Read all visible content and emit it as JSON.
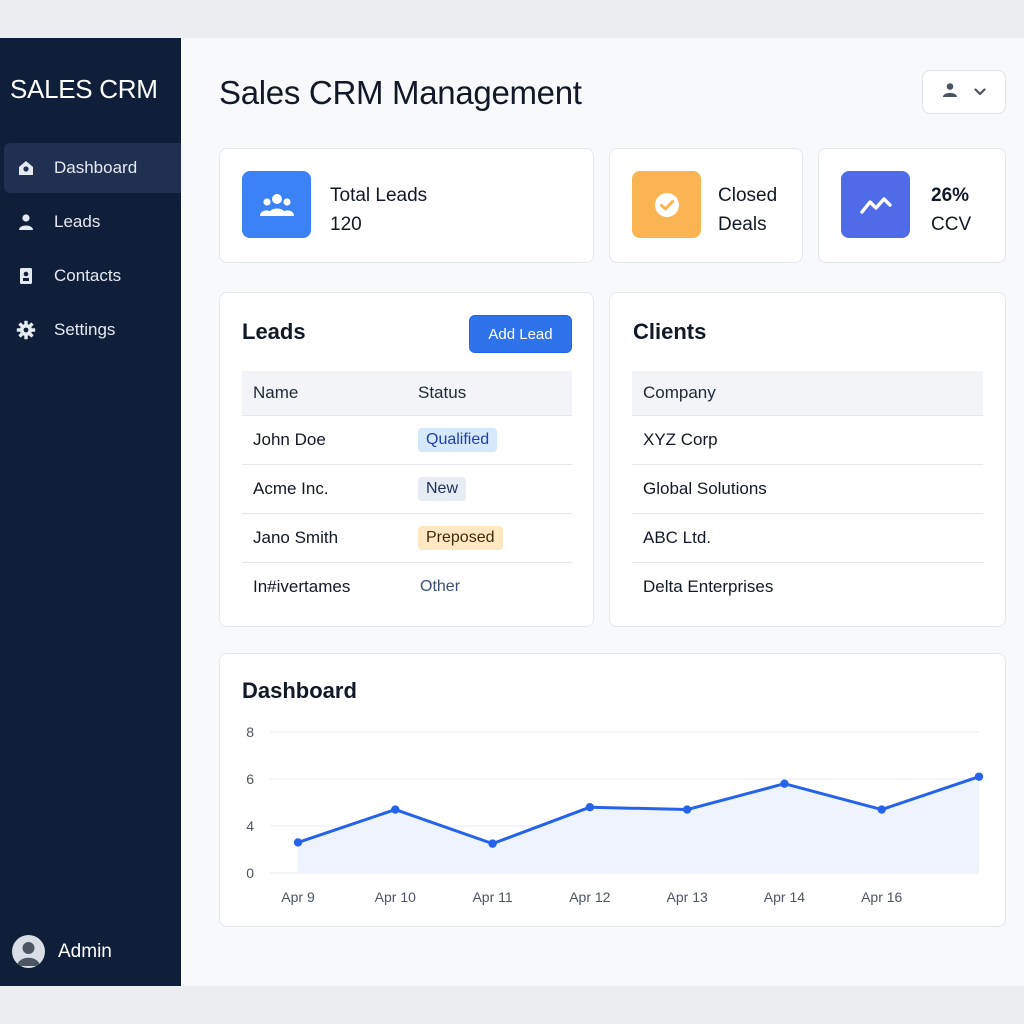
{
  "app": {
    "brand": "SALES CRM",
    "title": "Sales CRM Management"
  },
  "sidebar": {
    "items": [
      {
        "label": "Dashboard",
        "icon": "home-icon",
        "active": true
      },
      {
        "label": "Leads",
        "icon": "user-icon"
      },
      {
        "label": "Contacts",
        "icon": "contact-card-icon"
      },
      {
        "label": "Settings",
        "icon": "gear-icon"
      }
    ],
    "user": "Admin"
  },
  "stats": [
    {
      "label": "Total Leads",
      "value": "120",
      "icon": "users-icon",
      "color": "#3b82f6"
    },
    {
      "line1": "Closed",
      "line2": "Deals",
      "icon": "check-circle-icon",
      "color": "#fbb452"
    },
    {
      "value": "26%",
      "label": "CCV",
      "icon": "trend-icon",
      "color": "#4f6be8"
    }
  ],
  "leads": {
    "title": "Leads",
    "add_label": "Add Lead",
    "headers": {
      "name": "Name",
      "status": "Status"
    },
    "rows": [
      {
        "name": "John Doe",
        "status": "Qualified"
      },
      {
        "name": "Acme Inc.",
        "status": "New"
      },
      {
        "name": "Jano Smith",
        "status": "Preposed"
      },
      {
        "name": "In#ivertames",
        "status": "Other"
      }
    ]
  },
  "clients": {
    "title": "Clients",
    "header": "Company",
    "rows": [
      "XYZ Corp",
      "Global Solutions",
      "ABC Ltd.",
      "Delta Enterprises"
    ]
  },
  "chart_data": {
    "type": "line",
    "title": "Dashboard",
    "x": [
      "Apr 9",
      "Apr 10",
      "Apr 11",
      "Apr 12",
      "Apr 13",
      "Apr 14",
      "Apr 16",
      ""
    ],
    "x_tick_labels": [
      "Apr 9",
      "Apr 10",
      "Apr 11",
      "Apr 12",
      "Apr 13",
      "Apr 14",
      "Apr 16"
    ],
    "series": [
      {
        "values": [
          2.6,
          4.7,
          2.5,
          4.8,
          4.7,
          5.8,
          4.7,
          6.1
        ],
        "color": "#2563eb"
      }
    ],
    "y_ticks": [
      0,
      4,
      6,
      8
    ],
    "area_fill": "#eef3fd",
    "grid": true
  }
}
